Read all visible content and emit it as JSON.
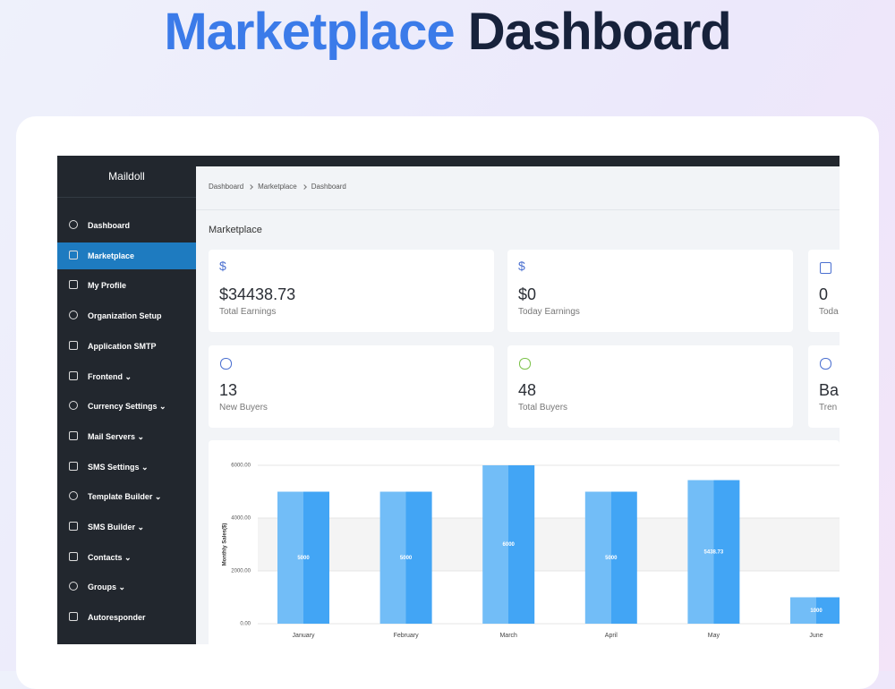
{
  "header": {
    "title_accent": "Marketplace",
    "title_rest": "Dashboard"
  },
  "sidebar": {
    "brand": "Maildoll",
    "items": [
      "Dashboard",
      "Marketplace",
      "My Profile",
      "Organization Setup",
      "Application SMTP",
      "Frontend ⌄",
      "Currency Settings ⌄",
      "Mail Servers ⌄",
      "SMS Settings ⌄",
      "Template Builder ⌄",
      "SMS Builder ⌄",
      "Contacts ⌄",
      "Groups ⌄",
      "Autoresponder"
    ]
  },
  "breadcrumb": [
    "Dashboard",
    "Marketplace",
    "Dashboard"
  ],
  "page_title": "Marketplace",
  "cards": [
    {
      "icon": "$",
      "value": "$34438.73",
      "label": "Total Earnings"
    },
    {
      "icon": "$",
      "value": "$0",
      "label": "Today Earnings"
    },
    {
      "value": "0",
      "label": "Toda"
    },
    {
      "value": "13",
      "label": "New Buyers"
    },
    {
      "value": "48",
      "label": "Total Buyers"
    },
    {
      "value": "Bal",
      "label": "Tren"
    }
  ],
  "chart_data": {
    "type": "bar",
    "y_label": "Monthly Sales($)",
    "categories": [
      "January",
      "February",
      "March",
      "April",
      "May",
      "June"
    ],
    "values": [
      5000,
      5000,
      6000,
      5000,
      5438.73,
      1000
    ],
    "color": "#42a5f5",
    "ylim": [
      0,
      6000
    ],
    "yticks": [
      {
        "value": 0,
        "label": "0.00"
      },
      {
        "value": 2000,
        "label": "2000.00"
      },
      {
        "value": 4000,
        "label": "4000.00"
      },
      {
        "value": 6000,
        "label": "6000.00"
      }
    ],
    "grid": true
  }
}
